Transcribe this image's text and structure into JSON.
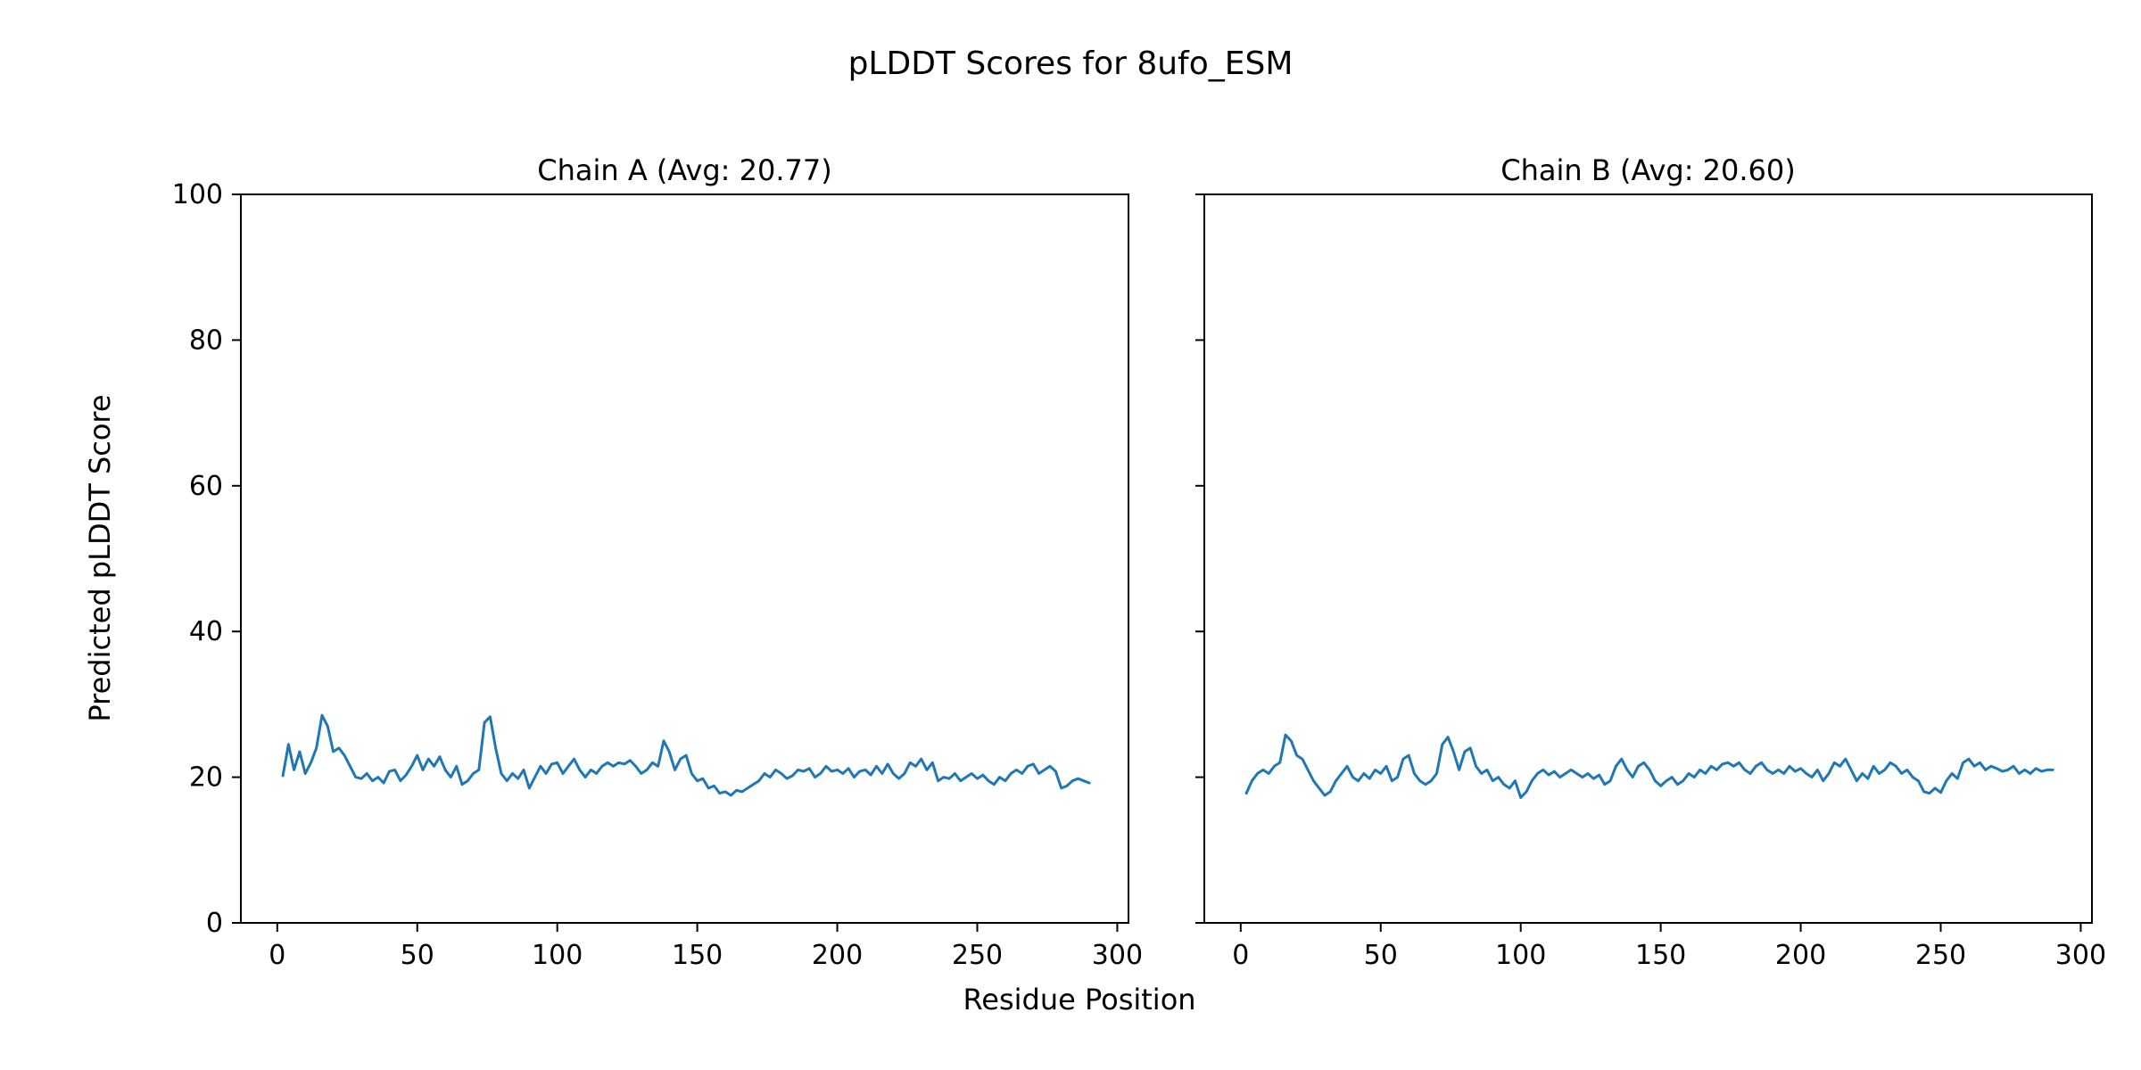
{
  "figure": {
    "title": "pLDDT Scores for 8ufo_ESM",
    "xlabel": "Residue Position",
    "ylabel": "Predicted pLDDT Score",
    "background_color": "#ffffff",
    "line_color": "#1f77b4"
  },
  "chart_data": [
    {
      "type": "line",
      "title": "Chain A (Avg: 20.77)",
      "avg": 20.77,
      "xlabel": "Residue Position",
      "ylabel": "Predicted pLDDT Score",
      "xlim": [
        -13,
        304
      ],
      "ylim": [
        0,
        100
      ],
      "xticks": [
        0,
        50,
        100,
        150,
        200,
        250,
        300
      ],
      "yticks": [
        0,
        20,
        40,
        60,
        80,
        100
      ],
      "ytick_labels_visible": true,
      "grid": false,
      "legend": "none",
      "line_color": "#1f77b4",
      "x": [
        2,
        4,
        6,
        8,
        10,
        12,
        14,
        16,
        18,
        20,
        22,
        24,
        26,
        28,
        30,
        32,
        34,
        36,
        38,
        40,
        42,
        44,
        46,
        48,
        50,
        52,
        54,
        56,
        58,
        60,
        62,
        64,
        66,
        68,
        70,
        72,
        74,
        76,
        78,
        80,
        82,
        84,
        86,
        88,
        90,
        92,
        94,
        96,
        98,
        100,
        102,
        104,
        106,
        108,
        110,
        112,
        114,
        116,
        118,
        120,
        122,
        124,
        126,
        128,
        130,
        132,
        134,
        136,
        138,
        140,
        142,
        144,
        146,
        148,
        150,
        152,
        154,
        156,
        158,
        160,
        162,
        164,
        166,
        168,
        170,
        172,
        174,
        176,
        178,
        180,
        182,
        184,
        186,
        188,
        190,
        192,
        194,
        196,
        198,
        200,
        202,
        204,
        206,
        208,
        210,
        212,
        214,
        216,
        218,
        220,
        222,
        224,
        226,
        228,
        230,
        232,
        234,
        236,
        238,
        240,
        242,
        244,
        246,
        248,
        250,
        252,
        254,
        256,
        258,
        260,
        262,
        264,
        266,
        268,
        270,
        272,
        274,
        276,
        278,
        280,
        282,
        284,
        286,
        288,
        290
      ],
      "y": [
        20.2,
        24.5,
        21.0,
        23.5,
        20.5,
        22.0,
        24.0,
        28.5,
        27.0,
        23.5,
        24.0,
        23.0,
        21.5,
        20.0,
        19.8,
        20.5,
        19.5,
        20.0,
        19.2,
        20.8,
        21.0,
        19.5,
        20.3,
        21.5,
        23.0,
        21.0,
        22.5,
        21.5,
        22.8,
        21.0,
        20.0,
        21.5,
        19.0,
        19.5,
        20.5,
        21.0,
        27.5,
        28.3,
        24.0,
        20.5,
        19.5,
        20.5,
        19.8,
        21.0,
        18.5,
        20.0,
        21.5,
        20.5,
        21.8,
        22.0,
        20.5,
        21.5,
        22.5,
        21.0,
        20.0,
        21.0,
        20.5,
        21.5,
        22.0,
        21.5,
        22.0,
        21.8,
        22.3,
        21.5,
        20.5,
        21.0,
        22.0,
        21.5,
        25.0,
        23.5,
        21.0,
        22.5,
        23.0,
        20.5,
        19.5,
        19.8,
        18.5,
        18.8,
        17.8,
        18.0,
        17.5,
        18.2,
        18.0,
        18.5,
        19.0,
        19.5,
        20.5,
        20.0,
        21.0,
        20.5,
        19.8,
        20.2,
        21.0,
        20.8,
        21.2,
        20.0,
        20.5,
        21.5,
        20.8,
        21.0,
        20.5,
        21.2,
        20.0,
        20.8,
        21.0,
        20.3,
        21.5,
        20.5,
        21.8,
        20.5,
        19.8,
        20.5,
        22.0,
        21.5,
        22.5,
        21.0,
        22.0,
        19.5,
        20.0,
        19.8,
        20.5,
        19.5,
        20.0,
        20.5,
        19.8,
        20.3,
        19.5,
        19.0,
        20.0,
        19.5,
        20.5,
        21.0,
        20.5,
        21.5,
        21.8,
        20.5,
        21.0,
        21.5,
        20.8,
        18.5,
        18.8,
        19.5,
        19.8,
        19.5,
        19.2
      ]
    },
    {
      "type": "line",
      "title": "Chain B (Avg: 20.60)",
      "avg": 20.6,
      "xlabel": "Residue Position",
      "ylabel": "Predicted pLDDT Score",
      "xlim": [
        -13,
        304
      ],
      "ylim": [
        0,
        100
      ],
      "xticks": [
        0,
        50,
        100,
        150,
        200,
        250,
        300
      ],
      "yticks": [
        0,
        20,
        40,
        60,
        80,
        100
      ],
      "ytick_labels_visible": false,
      "grid": false,
      "legend": "none",
      "line_color": "#1f77b4",
      "x": [
        2,
        4,
        6,
        8,
        10,
        12,
        14,
        16,
        18,
        20,
        22,
        24,
        26,
        28,
        30,
        32,
        34,
        36,
        38,
        40,
        42,
        44,
        46,
        48,
        50,
        52,
        54,
        56,
        58,
        60,
        62,
        64,
        66,
        68,
        70,
        72,
        74,
        76,
        78,
        80,
        82,
        84,
        86,
        88,
        90,
        92,
        94,
        96,
        98,
        100,
        102,
        104,
        106,
        108,
        110,
        112,
        114,
        116,
        118,
        120,
        122,
        124,
        126,
        128,
        130,
        132,
        134,
        136,
        138,
        140,
        142,
        144,
        146,
        148,
        150,
        152,
        154,
        156,
        158,
        160,
        162,
        164,
        166,
        168,
        170,
        172,
        174,
        176,
        178,
        180,
        182,
        184,
        186,
        188,
        190,
        192,
        194,
        196,
        198,
        200,
        202,
        204,
        206,
        208,
        210,
        212,
        214,
        216,
        218,
        220,
        222,
        224,
        226,
        228,
        230,
        232,
        234,
        236,
        238,
        240,
        242,
        244,
        246,
        248,
        250,
        252,
        254,
        256,
        258,
        260,
        262,
        264,
        266,
        268,
        270,
        272,
        274,
        276,
        278,
        280,
        282,
        284,
        286,
        288,
        290
      ],
      "y": [
        17.8,
        19.5,
        20.5,
        21.0,
        20.5,
        21.5,
        22.0,
        25.8,
        25.0,
        23.0,
        22.5,
        21.0,
        19.5,
        18.5,
        17.5,
        18.0,
        19.5,
        20.5,
        21.5,
        20.0,
        19.5,
        20.5,
        19.8,
        21.0,
        20.5,
        21.5,
        19.5,
        20.0,
        22.5,
        23.0,
        20.5,
        19.5,
        19.0,
        19.5,
        20.5,
        24.5,
        25.5,
        23.5,
        21.0,
        23.5,
        24.0,
        21.5,
        20.5,
        21.0,
        19.5,
        20.0,
        19.0,
        18.5,
        19.5,
        17.2,
        18.0,
        19.5,
        20.5,
        21.0,
        20.3,
        20.8,
        20.0,
        20.5,
        21.0,
        20.5,
        20.0,
        20.5,
        19.8,
        20.3,
        19.0,
        19.5,
        21.5,
        22.5,
        21.0,
        20.0,
        21.5,
        22.0,
        21.0,
        19.5,
        18.8,
        19.5,
        20.0,
        19.0,
        19.5,
        20.5,
        20.0,
        21.0,
        20.5,
        21.5,
        21.0,
        21.8,
        22.0,
        21.5,
        22.0,
        21.0,
        20.5,
        21.5,
        22.0,
        21.0,
        20.5,
        21.0,
        20.5,
        21.5,
        20.8,
        21.2,
        20.5,
        20.0,
        21.0,
        19.5,
        20.5,
        22.0,
        21.5,
        22.5,
        21.0,
        19.5,
        20.5,
        19.8,
        21.5,
        20.5,
        21.0,
        22.0,
        21.5,
        20.5,
        21.0,
        20.0,
        19.5,
        18.0,
        17.8,
        18.5,
        17.9,
        19.5,
        20.5,
        19.8,
        22.0,
        22.5,
        21.5,
        22.0,
        21.0,
        21.5,
        21.2,
        20.8,
        21.0,
        21.5,
        20.5,
        21.0,
        20.5,
        21.2,
        20.8,
        21.0,
        21.0
      ]
    }
  ]
}
